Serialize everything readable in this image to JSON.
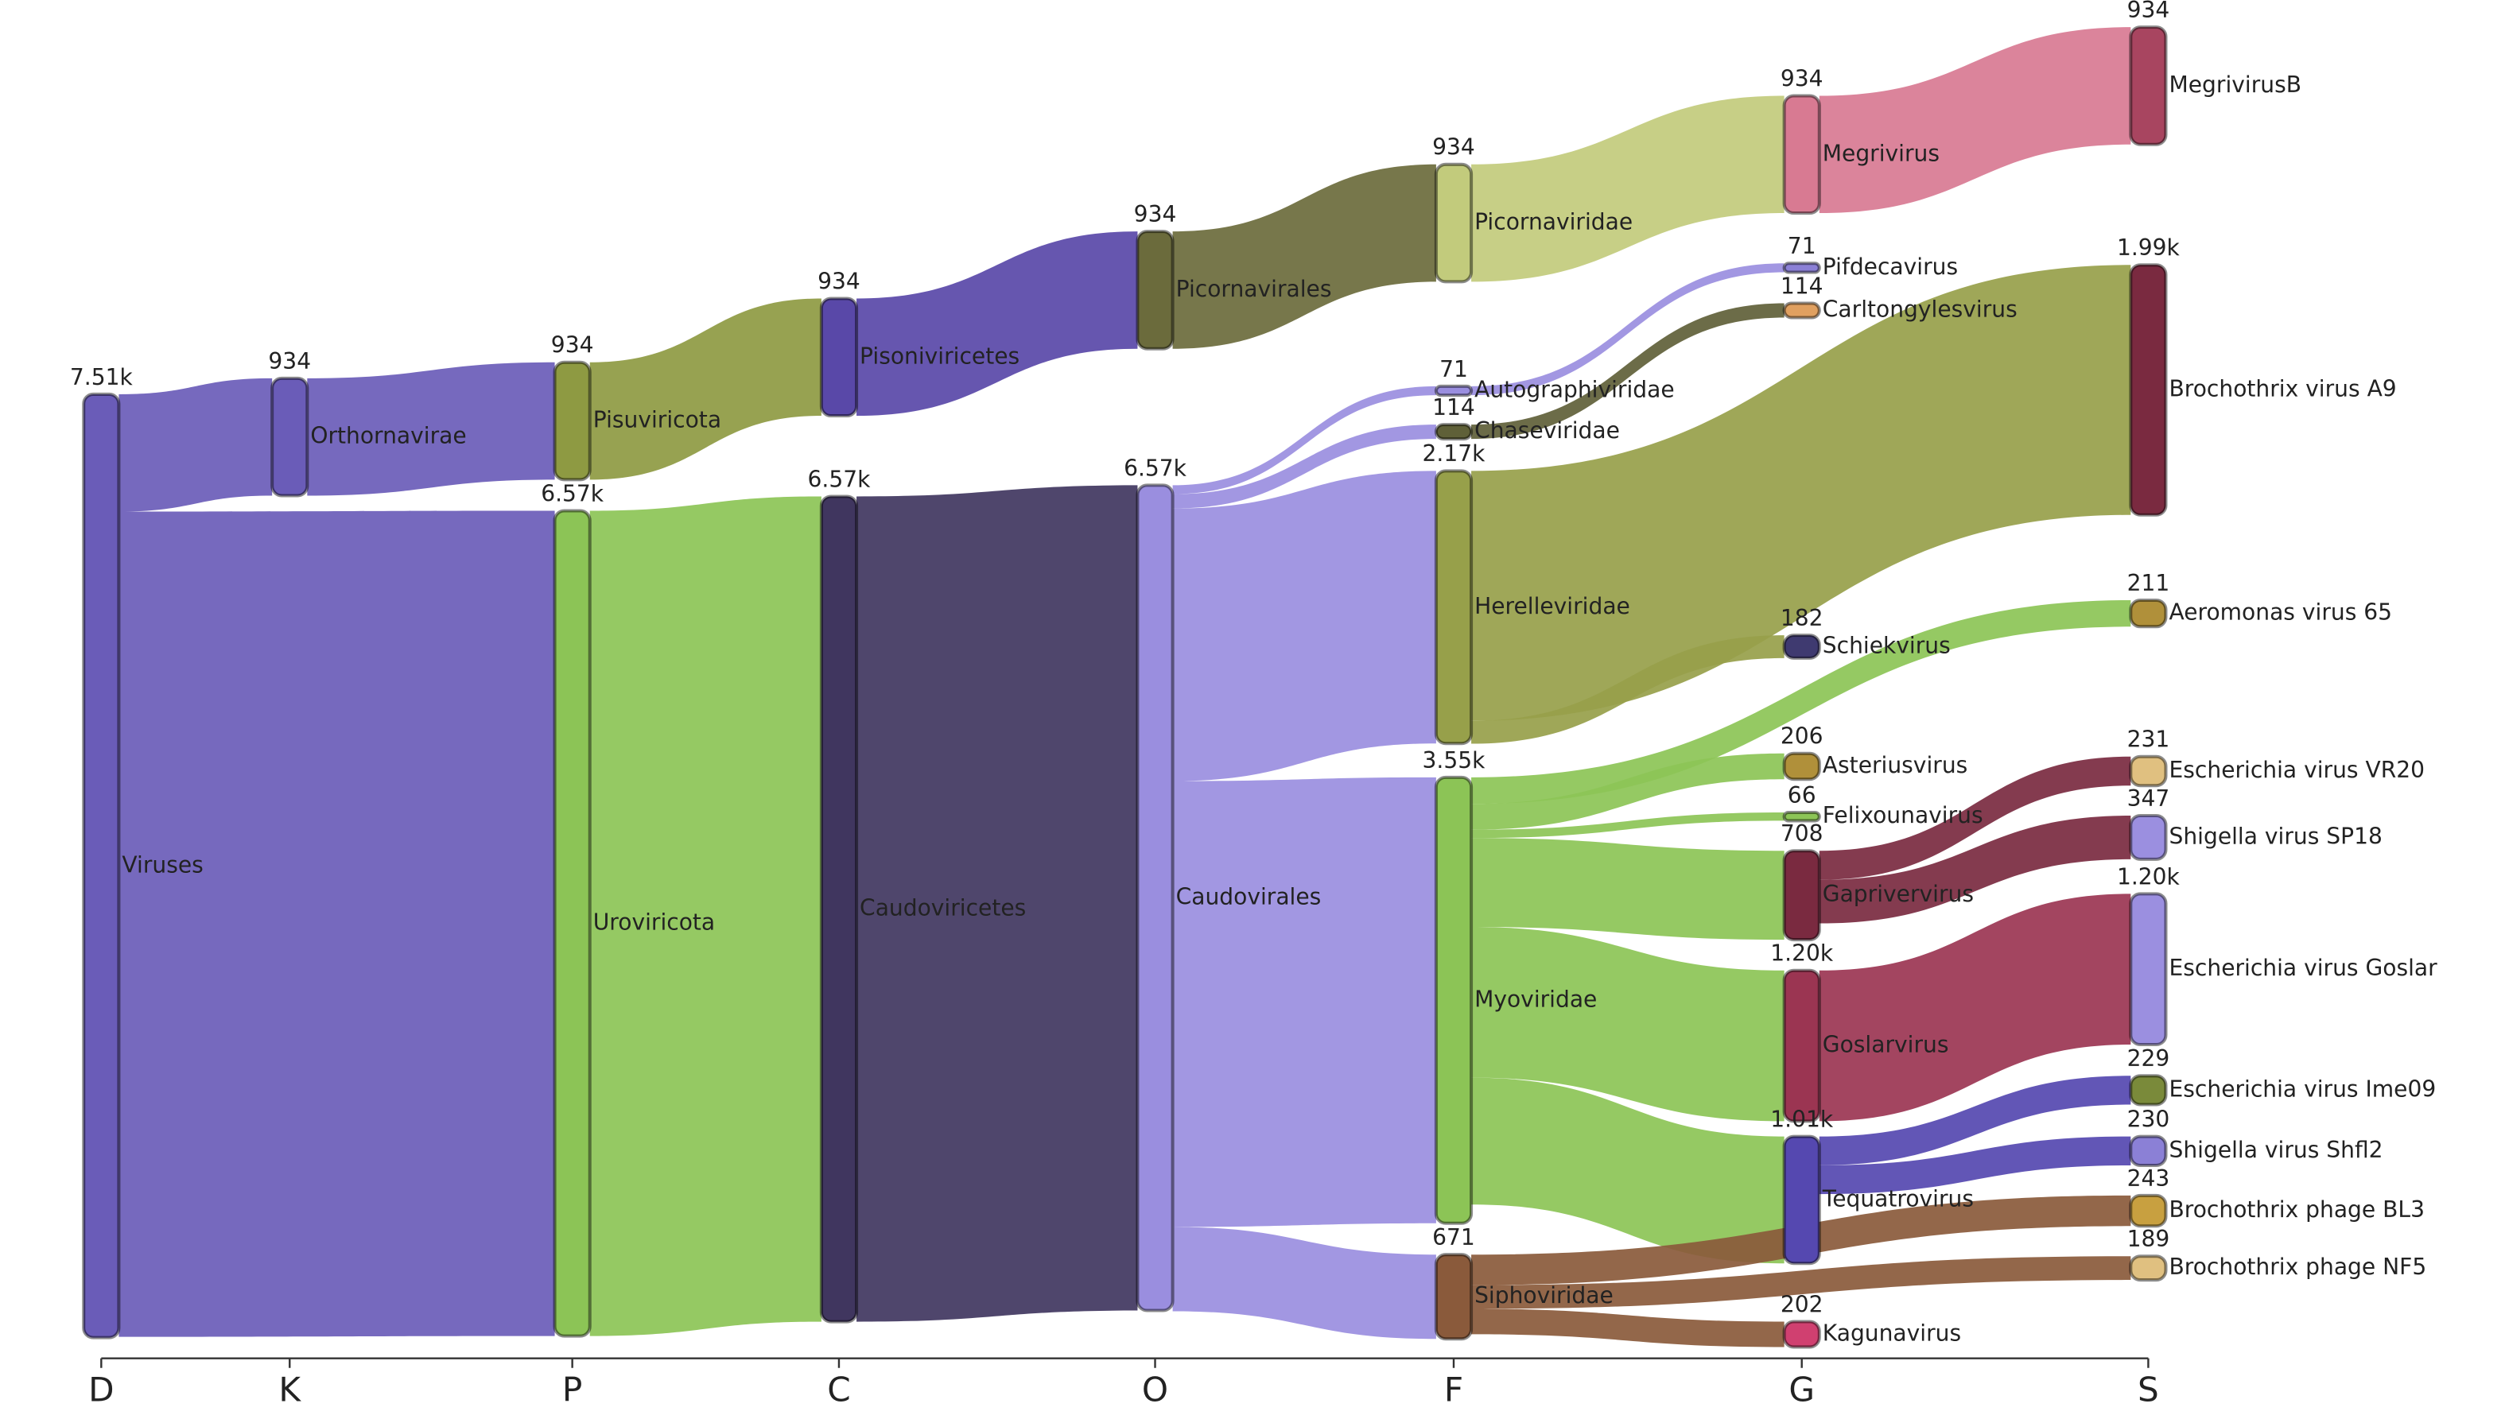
{
  "chart_data": {
    "type": "sankey",
    "columns": [
      "D",
      "K",
      "P",
      "C",
      "O",
      "F",
      "G",
      "S"
    ],
    "nodes": [
      {
        "name": "Viruses",
        "column": 0,
        "value": 7510,
        "value_label": "7.51k",
        "color": "#6a5cb8"
      },
      {
        "name": "Orthornavirae",
        "column": 1,
        "value": 934,
        "color": "#6a5cb8"
      },
      {
        "name": "Pisuviricota",
        "column": 2,
        "value": 934,
        "color": "#8e9a42"
      },
      {
        "name": "Uroviricota",
        "column": 2,
        "value": 6570,
        "value_label": "6.57k",
        "color": "#8cc456"
      },
      {
        "name": "Pisoniviricetes",
        "column": 3,
        "value": 934,
        "color": "#5948a8"
      },
      {
        "name": "Caudoviricetes",
        "column": 3,
        "value": 6570,
        "value_label": "6.57k",
        "color": "#40365f"
      },
      {
        "name": "Picornavirales",
        "column": 4,
        "value": 934,
        "color": "#6b6b3c"
      },
      {
        "name": "Caudovirales",
        "column": 4,
        "value": 6570,
        "value_label": "6.57k",
        "color": "#9a8edf"
      },
      {
        "name": "Picornaviridae",
        "column": 5,
        "value": 934,
        "color": "#c2cb7c"
      },
      {
        "name": "Autographiviridae",
        "column": 5,
        "value": 71,
        "color": "#9a8edf"
      },
      {
        "name": "Chaseviridae",
        "column": 5,
        "value": 114,
        "color": "#5f6038"
      },
      {
        "name": "Herelleviridae",
        "column": 5,
        "value": 2170,
        "value_label": "2.17k",
        "color": "#97a04a"
      },
      {
        "name": "Myoviridae",
        "column": 5,
        "value": 3550,
        "value_label": "3.55k",
        "color": "#8cc456"
      },
      {
        "name": "Siphoviridae",
        "column": 5,
        "value": 671,
        "color": "#8a5a3b"
      },
      {
        "name": "Megrivirus",
        "column": 6,
        "value": 934,
        "color": "#d87a92"
      },
      {
        "name": "Pifdecavirus",
        "column": 6,
        "value": 71,
        "color": "#8b80d6"
      },
      {
        "name": "Carltongylesvirus",
        "column": 6,
        "value": 114,
        "color": "#e0a060"
      },
      {
        "name": "Schiekvirus",
        "column": 6,
        "value": 182,
        "color": "#3f3a70"
      },
      {
        "name": "Asteriusvirus",
        "column": 6,
        "value": 206,
        "color": "#b0903a"
      },
      {
        "name": "Felixounavirus",
        "column": 6,
        "value": 66,
        "color": "#8cc456"
      },
      {
        "name": "Gaprivervirus",
        "column": 6,
        "value": 708,
        "color": "#7a2a40"
      },
      {
        "name": "Goslarvirus",
        "column": 6,
        "value": 1200,
        "value_label": "1.20k",
        "color": "#9b3552"
      },
      {
        "name": "Tequatrovirus",
        "column": 6,
        "value": 1010,
        "value_label": "1.01k",
        "color": "#5548b0"
      },
      {
        "name": "Kagunavirus",
        "column": 6,
        "value": 202,
        "color": "#d04070"
      },
      {
        "name": "MegrivirusB",
        "column": 7,
        "value": 934,
        "color": "#a84560"
      },
      {
        "name": "Brochothrix virus A9",
        "column": 7,
        "value": 1990,
        "value_label": "1.99k",
        "color": "#7a2a40"
      },
      {
        "name": "Aeromonas virus 65",
        "column": 7,
        "value": 211,
        "color": "#b0903a"
      },
      {
        "name": "Escherichia virus VR20",
        "column": 7,
        "value": 231,
        "color": "#e0c080"
      },
      {
        "name": "Shigella virus SP18",
        "column": 7,
        "value": 347,
        "color": "#9b8fe0"
      },
      {
        "name": "Escherichia virus Goslar",
        "column": 7,
        "value": 1200,
        "value_label": "1.20k",
        "color": "#9b8fe0"
      },
      {
        "name": "Escherichia virus Ime09",
        "column": 7,
        "value": 229,
        "color": "#7a8a3a"
      },
      {
        "name": "Shigella virus Shfl2",
        "column": 7,
        "value": 230,
        "color": "#8b80d6"
      },
      {
        "name": "Brochothrix phage BL3",
        "column": 7,
        "value": 243,
        "color": "#c8a040"
      },
      {
        "name": "Brochothrix phage NF5",
        "column": 7,
        "value": 189,
        "color": "#e0c080"
      }
    ],
    "links": [
      {
        "source": 0,
        "target": 1,
        "value": 934
      },
      {
        "source": 0,
        "target": 3,
        "value": 6570
      },
      {
        "source": 1,
        "target": 2,
        "value": 934
      },
      {
        "source": 2,
        "target": 4,
        "value": 934
      },
      {
        "source": 3,
        "target": 5,
        "value": 6570
      },
      {
        "source": 4,
        "target": 6,
        "value": 934
      },
      {
        "source": 5,
        "target": 7,
        "value": 6570
      },
      {
        "source": 6,
        "target": 8,
        "value": 934
      },
      {
        "source": 7,
        "target": 9,
        "value": 71
      },
      {
        "source": 7,
        "target": 10,
        "value": 114
      },
      {
        "source": 7,
        "target": 11,
        "value": 2170
      },
      {
        "source": 7,
        "target": 12,
        "value": 3550
      },
      {
        "source": 7,
        "target": 13,
        "value": 671
      },
      {
        "source": 8,
        "target": 14,
        "value": 934
      },
      {
        "source": 9,
        "target": 15,
        "value": 71
      },
      {
        "source": 10,
        "target": 16,
        "value": 114
      },
      {
        "source": 11,
        "target": 25,
        "value": 1990
      },
      {
        "source": 11,
        "target": 17,
        "value": 182
      },
      {
        "source": 12,
        "target": 26,
        "value": 211
      },
      {
        "source": 12,
        "target": 18,
        "value": 206
      },
      {
        "source": 12,
        "target": 19,
        "value": 66
      },
      {
        "source": 12,
        "target": 20,
        "value": 708
      },
      {
        "source": 12,
        "target": 21,
        "value": 1200
      },
      {
        "source": 12,
        "target": 22,
        "value": 1010
      },
      {
        "source": 13,
        "target": 32,
        "value": 243
      },
      {
        "source": 13,
        "target": 33,
        "value": 189
      },
      {
        "source": 13,
        "target": 23,
        "value": 202
      },
      {
        "source": 14,
        "target": 24,
        "value": 934
      },
      {
        "source": 20,
        "target": 27,
        "value": 231
      },
      {
        "source": 20,
        "target": 28,
        "value": 347
      },
      {
        "source": 21,
        "target": 29,
        "value": 1200
      },
      {
        "source": 22,
        "target": 30,
        "value": 229
      },
      {
        "source": 22,
        "target": 31,
        "value": 230
      }
    ]
  }
}
